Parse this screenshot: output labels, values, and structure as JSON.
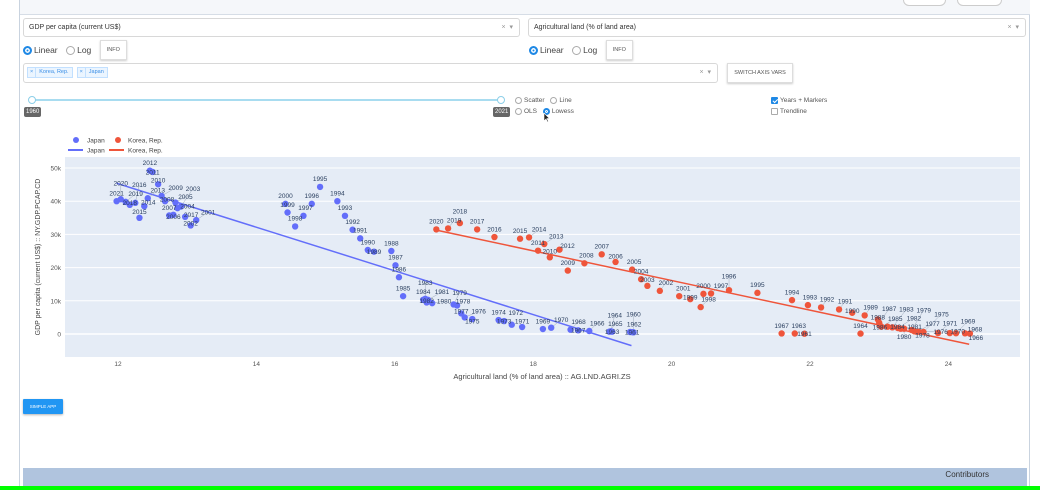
{
  "y_selector": {
    "value": "GDP per capita (current US$)",
    "clear": "×",
    "arrow": "▾"
  },
  "x_selector": {
    "value": "Agricultural land (% of land area)",
    "clear": "×",
    "arrow": "▾"
  },
  "y_scale": {
    "linear": "Linear",
    "log": "Log",
    "selected": "Linear",
    "info": "INFO"
  },
  "x_scale": {
    "linear": "Linear",
    "log": "Log",
    "selected": "Linear",
    "info": "INFO"
  },
  "countries": {
    "tags": [
      "Korea, Rep.",
      "Japan"
    ],
    "remove": "×",
    "clear": "×",
    "arrow": "▾"
  },
  "switch_button": "SWITCH AXIS VARS",
  "year_slider": {
    "min_label": "1960",
    "max_label": "2021",
    "range": [
      1960,
      2021
    ]
  },
  "plot_type": {
    "scatter": "Scatter",
    "line": "Line",
    "ols": "OLS",
    "lowess": "Lowess",
    "selected": "Lowess"
  },
  "options": {
    "years_markers": "Years + Markers",
    "years_markers_checked": true,
    "trendline": "Trendline",
    "trendline_checked": false
  },
  "simple_app_button": "SIMPLE APP",
  "footer": {
    "contributors": "Contributors"
  },
  "chart_data": {
    "type": "scatter",
    "xlabel": "Agricultural land (% of land area) :: AG.LND.AGRI.ZS",
    "ylabel": "GDP per capita (current US$) :: NY.GDP.PCAP.CD",
    "xlim": [
      11.3,
      25.2
    ],
    "ylim": [
      -7,
      57
    ],
    "xticks": [
      12,
      14,
      16,
      18,
      20,
      22,
      24
    ],
    "xtick_labels": [
      "12",
      "14",
      "16",
      "18",
      "20",
      "22",
      "24"
    ],
    "yticks": [
      0,
      10,
      20,
      30,
      40,
      50
    ],
    "ytick_labels": [
      "0",
      "10k",
      "20k",
      "30k",
      "40k",
      "50k"
    ],
    "legend": {
      "placement": "top-left",
      "entries": [
        "Japan",
        "Korea, Rep.",
        "Japan",
        "Korea, Rep."
      ]
    },
    "series": [
      {
        "name": "Japan",
        "color": "#636efa",
        "points": [
          [
            2021,
            11.98,
            40.0
          ],
          [
            2020,
            12.04,
            40.6
          ],
          [
            2019,
            12.11,
            39.8
          ],
          [
            2018,
            12.17,
            38.9
          ],
          [
            2016,
            12.25,
            39.5
          ],
          [
            2015,
            12.31,
            35.0
          ],
          [
            2014,
            12.38,
            38.5
          ],
          [
            2013,
            12.43,
            40.9
          ],
          [
            2012,
            12.46,
            49.2
          ],
          [
            2011,
            12.5,
            48.8
          ],
          [
            2010,
            12.58,
            45.1
          ],
          [
            2009,
            12.63,
            41.6
          ],
          [
            2008,
            12.68,
            40.0
          ],
          [
            2007,
            12.74,
            35.7
          ],
          [
            2006,
            12.8,
            35.9
          ],
          [
            2005,
            12.83,
            39.6
          ],
          [
            2004,
            12.86,
            37.9
          ],
          [
            2003,
            12.91,
            38.4
          ],
          [
            2017,
            12.97,
            35.3
          ],
          [
            2002,
            13.05,
            32.7
          ],
          [
            2001,
            13.13,
            34.3
          ],
          [
            2000,
            14.42,
            39.2
          ],
          [
            1999,
            14.45,
            36.6
          ],
          [
            1998,
            14.56,
            32.4
          ],
          [
            1997,
            14.68,
            35.6
          ],
          [
            1996,
            14.8,
            39.2
          ],
          [
            1995,
            14.92,
            44.3
          ],
          [
            1994,
            15.17,
            40.0
          ],
          [
            1993,
            15.28,
            35.6
          ],
          [
            1992,
            15.39,
            31.4
          ],
          [
            1991,
            15.5,
            28.8
          ],
          [
            1990,
            15.61,
            25.3
          ],
          [
            1989,
            15.7,
            24.8
          ],
          [
            1988,
            15.95,
            25.0
          ],
          [
            1987,
            16.01,
            20.7
          ],
          [
            1986,
            16.06,
            17.1
          ],
          [
            1985,
            16.12,
            11.4
          ],
          [
            1984,
            16.41,
            10.3
          ],
          [
            1983,
            16.44,
            10.6
          ],
          [
            1982,
            16.46,
            9.5
          ],
          [
            1981,
            16.48,
            10.3
          ],
          [
            1980,
            16.54,
            9.3
          ],
          [
            1979,
            16.85,
            8.9
          ],
          [
            1978,
            16.9,
            8.6
          ],
          [
            1977,
            16.96,
            6.2
          ],
          [
            1976,
            17.01,
            5.0
          ],
          [
            1975,
            17.12,
            4.5
          ],
          [
            1974,
            17.5,
            4.2
          ],
          [
            1973,
            17.58,
            3.9
          ],
          [
            1972,
            17.69,
            2.8
          ],
          [
            1971,
            17.84,
            2.1
          ],
          [
            1969,
            18.14,
            1.5
          ],
          [
            1970,
            18.26,
            1.9
          ],
          [
            1968,
            18.54,
            1.3
          ],
          [
            1967,
            18.65,
            1.1
          ],
          [
            1966,
            18.81,
            0.9
          ],
          [
            1965,
            19.1,
            0.7
          ],
          [
            1964,
            19.12,
            0.8
          ],
          [
            1963,
            19.14,
            0.7
          ],
          [
            1962,
            19.4,
            0.6
          ],
          [
            1961,
            19.43,
            0.55
          ],
          [
            1960,
            19.45,
            0.5
          ]
        ],
        "trend": [
          [
            11.98,
            45.4
          ],
          [
            15.7,
            21.0
          ],
          [
            19.42,
            -3.5
          ]
        ]
      },
      {
        "name": "Korea, Rep.",
        "color": "#ef553b",
        "points": [
          [
            2020,
            16.6,
            31.5
          ],
          [
            2019,
            16.77,
            31.8
          ],
          [
            2018,
            16.94,
            33.4
          ],
          [
            2017,
            17.19,
            31.5
          ],
          [
            2016,
            17.44,
            29.2
          ],
          [
            2015,
            17.81,
            28.7
          ],
          [
            2014,
            17.94,
            29.1
          ],
          [
            2011,
            18.07,
            25.1
          ],
          [
            2013,
            18.16,
            27.1
          ],
          [
            2010,
            18.24,
            23.1
          ],
          [
            2012,
            18.38,
            25.4
          ],
          [
            2009,
            18.5,
            19.1
          ],
          [
            2008,
            18.74,
            21.3
          ],
          [
            2007,
            18.99,
            24.0
          ],
          [
            2006,
            19.19,
            21.7
          ],
          [
            2005,
            19.43,
            19.4
          ],
          [
            2004,
            19.56,
            16.5
          ],
          [
            2003,
            19.65,
            14.5
          ],
          [
            2002,
            19.83,
            13.0
          ],
          [
            2001,
            20.11,
            11.4
          ],
          [
            1999,
            20.27,
            10.5
          ],
          [
            1998,
            20.42,
            8.1
          ],
          [
            2000,
            20.46,
            12.1
          ],
          [
            1997,
            20.57,
            12.2
          ],
          [
            1996,
            20.83,
            13.2
          ],
          [
            1995,
            21.24,
            12.4
          ],
          [
            1967,
            21.59,
            0.16
          ],
          [
            1994,
            21.74,
            10.2
          ],
          [
            1963,
            21.78,
            0.15
          ],
          [
            1961,
            21.92,
            0.09
          ],
          [
            1993,
            21.97,
            8.7
          ],
          [
            1992,
            22.16,
            8.0
          ],
          [
            1991,
            22.42,
            7.4
          ],
          [
            1990,
            22.61,
            6.4
          ],
          [
            1964,
            22.73,
            0.12
          ],
          [
            1989,
            22.79,
            5.6
          ],
          [
            1988,
            22.98,
            4.4
          ],
          [
            1987,
            23.0,
            3.4
          ],
          [
            1986,
            23.01,
            2.6
          ],
          [
            1985,
            23.03,
            2.2
          ],
          [
            1984,
            23.12,
            2.2
          ],
          [
            1983,
            23.19,
            2.0
          ],
          [
            1982,
            23.27,
            1.8
          ],
          [
            1981,
            23.31,
            1.6
          ],
          [
            1980,
            23.36,
            1.6
          ],
          [
            1979,
            23.47,
            1.2
          ],
          [
            1978,
            23.51,
            0.8
          ],
          [
            1977,
            23.54,
            0.7
          ],
          [
            1976,
            23.57,
            0.7
          ],
          [
            1975,
            23.64,
            0.6
          ],
          [
            1971,
            23.85,
            0.3
          ],
          [
            1970,
            24.02,
            0.28
          ],
          [
            1969,
            24.11,
            0.24
          ],
          [
            1968,
            24.24,
            0.2
          ],
          [
            1966,
            24.31,
            0.13
          ]
        ],
        "trend": [
          [
            16.6,
            31.3
          ],
          [
            20.45,
            14.1
          ],
          [
            24.3,
            -3.1
          ]
        ]
      }
    ]
  }
}
